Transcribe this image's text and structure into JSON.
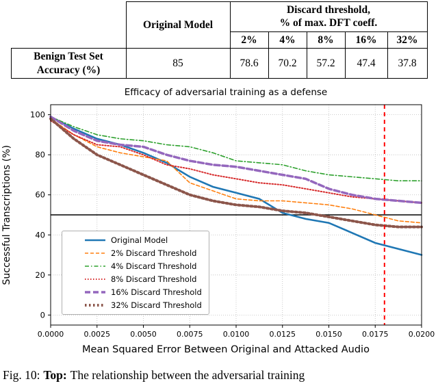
{
  "table": {
    "header": {
      "original_model": "Original Model",
      "discard_line1": "Discard threshold,",
      "discard_line2": "% of max. DFT coeff.",
      "thresholds": [
        "2%",
        "4%",
        "8%",
        "16%",
        "32%"
      ]
    },
    "row": {
      "label_line1": "Benign Test Set",
      "label_line2": "Accuracy (%)",
      "original_value": "85",
      "values": [
        "78.6",
        "70.2",
        "57.2",
        "47.4",
        "37.8"
      ]
    }
  },
  "chart_data": {
    "type": "line",
    "title": "Efficacy of adversarial training as a defense",
    "xlabel": "Mean Squared Error Between Original and Attacked Audio",
    "ylabel": "Successful Transcriptions (%)",
    "xlim": [
      0.0,
      0.02
    ],
    "ylim": [
      0,
      100
    ],
    "grid": true,
    "grid_color": "#bbbbbb",
    "legend_position": "lower left",
    "xticks": [
      "0.0000",
      "0.0025",
      "0.0050",
      "0.0075",
      "0.0100",
      "0.0125",
      "0.0150",
      "0.0175",
      "0.0200"
    ],
    "yticks": [
      0,
      20,
      40,
      60,
      80,
      100
    ],
    "x": [
      0.0,
      0.00125,
      0.0025,
      0.00375,
      0.005,
      0.00625,
      0.0075,
      0.00875,
      0.01,
      0.01125,
      0.0125,
      0.01375,
      0.015,
      0.01625,
      0.0175,
      0.01875,
      0.02
    ],
    "series": [
      {
        "name": "Original Model",
        "color": "#1f77b4",
        "dash": "",
        "width": 2.6,
        "values": [
          99,
          93,
          88,
          85,
          81,
          76,
          69,
          64,
          61,
          58,
          51,
          48,
          46,
          41,
          36,
          33,
          30
        ]
      },
      {
        "name": "2% Discard Threshold",
        "color": "#ff7f0e",
        "dash": "5 3",
        "width": 1.6,
        "values": [
          98,
          90,
          84,
          81,
          79,
          77,
          66,
          62,
          58,
          57,
          57,
          56,
          55,
          53,
          50,
          47,
          46
        ]
      },
      {
        "name": "4% Discard Threshold",
        "color": "#2ca02c",
        "dash": "6 3 1.5 3",
        "width": 1.6,
        "values": [
          99,
          94,
          90,
          88,
          87,
          85,
          84,
          81,
          77,
          76,
          75,
          72,
          70,
          69,
          68,
          67,
          67
        ]
      },
      {
        "name": "8% Discard Threshold",
        "color": "#d62728",
        "dash": "1.5 2.5",
        "width": 2,
        "values": [
          97,
          90,
          85,
          84,
          80,
          75,
          73,
          70,
          68,
          66,
          65,
          63,
          61,
          59,
          58,
          57,
          56
        ]
      },
      {
        "name": "16% Discard Threshold",
        "color": "#9467bd",
        "dash": "8 4",
        "width": 3.5,
        "values": [
          99,
          92,
          87,
          85,
          84,
          80,
          77,
          75,
          74,
          72,
          70,
          68,
          63,
          60,
          58,
          57,
          56
        ]
      },
      {
        "name": "32% Discard Threshold",
        "color": "#8c564b",
        "dash": "2.5 3.5",
        "width": 4,
        "values": [
          98,
          88,
          80,
          75,
          70,
          65,
          60,
          57,
          55,
          54,
          52,
          51,
          49,
          47,
          45,
          44,
          44
        ]
      }
    ],
    "hline": {
      "y": 50,
      "color": "#000000",
      "width": 1.5
    },
    "vline": {
      "x": 0.018,
      "color": "#ff0000",
      "dash": "6 5",
      "width": 2
    }
  },
  "caption": {
    "prefix": "Fig. 10:",
    "bold": "Top:",
    "text": "The relationship between the adversarial training"
  }
}
